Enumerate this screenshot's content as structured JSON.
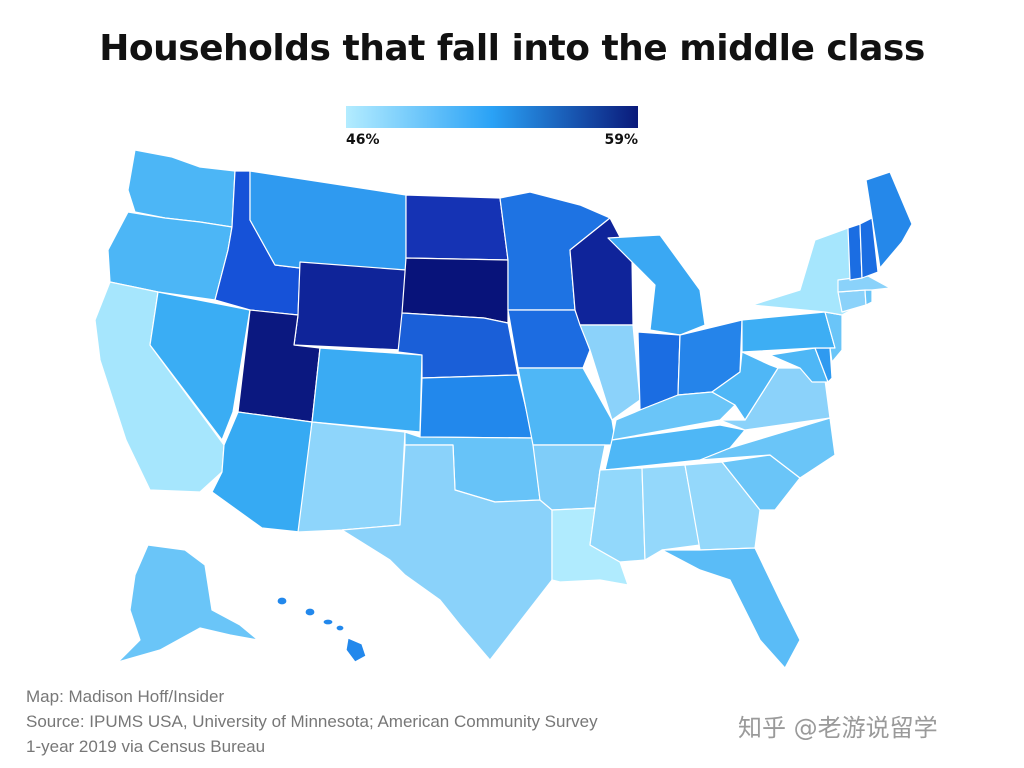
{
  "title": "Households that fall into the middle class",
  "legend": {
    "min_label": "46%",
    "max_label": "59%",
    "min_value": 46,
    "max_value": 59,
    "color_low": "#b3ecff",
    "color_mid": "#2aa2f6",
    "color_high": "#0a1a7a"
  },
  "credit": {
    "line1": "Map: Madison Hoff/Insider",
    "line2": "Source: IPUMS USA, University of Minnesota; American Community Survey",
    "line3": "1-year 2019 via Census Bureau"
  },
  "watermark": "知乎 @老游说留学",
  "states": {
    "WA": {
      "value": 51.5,
      "color": "#4cb6f6"
    },
    "OR": {
      "value": 51.5,
      "color": "#4cb6f6"
    },
    "CA": {
      "value": 47,
      "color": "#a6e6fd"
    },
    "NV": {
      "value": 52,
      "color": "#3aadf4"
    },
    "ID": {
      "value": 56,
      "color": "#1652d8"
    },
    "MT": {
      "value": 53,
      "color": "#2f9af0"
    },
    "WY": {
      "value": 58,
      "color": "#0f2499"
    },
    "UT": {
      "value": 59,
      "color": "#0b1880"
    },
    "AZ": {
      "value": 52,
      "color": "#36aaf3"
    },
    "CO": {
      "value": 52,
      "color": "#3aabf3"
    },
    "NM": {
      "value": 48,
      "color": "#8ed5fb"
    },
    "ND": {
      "value": 57,
      "color": "#1533b4"
    },
    "SD": {
      "value": 59,
      "color": "#08137a"
    },
    "NE": {
      "value": 56,
      "color": "#1a5fd8"
    },
    "KS": {
      "value": 54,
      "color": "#2288ec"
    },
    "OK": {
      "value": 50,
      "color": "#67c3f8"
    },
    "TX": {
      "value": 48.5,
      "color": "#8ad2fa"
    },
    "MN": {
      "value": 55,
      "color": "#1e73e3"
    },
    "IA": {
      "value": 55,
      "color": "#1c6ce1"
    },
    "MO": {
      "value": 51.5,
      "color": "#4fb7f6"
    },
    "AR": {
      "value": 49.5,
      "color": "#7fcdf9"
    },
    "LA": {
      "value": 46,
      "color": "#b0ebfe"
    },
    "WI": {
      "value": 58,
      "color": "#0f249a"
    },
    "IL": {
      "value": 49,
      "color": "#8bd2fa"
    },
    "MI": {
      "value": 52.5,
      "color": "#3aa8f3"
    },
    "IN": {
      "value": 55,
      "color": "#1b6de2"
    },
    "OH": {
      "value": 54,
      "color": "#2584ea"
    },
    "KY": {
      "value": 50,
      "color": "#6ac5f8"
    },
    "TN": {
      "value": 51,
      "color": "#4eb7f6"
    },
    "MS": {
      "value": 48,
      "color": "#92d8fb"
    },
    "AL": {
      "value": 48,
      "color": "#94d8fb"
    },
    "GA": {
      "value": 48,
      "color": "#94d8fb"
    },
    "FL": {
      "value": 50.5,
      "color": "#5abcf7"
    },
    "SC": {
      "value": 50,
      "color": "#6ac5f8"
    },
    "NC": {
      "value": 50,
      "color": "#6ac5f8"
    },
    "VA": {
      "value": 49,
      "color": "#8bd2fa"
    },
    "WV": {
      "value": 51.5,
      "color": "#4fb7f6"
    },
    "PA": {
      "value": 52,
      "color": "#3daef4"
    },
    "NY": {
      "value": 47,
      "color": "#a6e6fd"
    },
    "VT": {
      "value": 55,
      "color": "#1b6de2"
    },
    "NH": {
      "value": 55,
      "color": "#1b6de2"
    },
    "ME": {
      "value": 54,
      "color": "#2588ea"
    },
    "MA": {
      "value": 48.5,
      "color": "#8ad2fa"
    },
    "CT": {
      "value": 49,
      "color": "#8bd2fa"
    },
    "RI": {
      "value": 50,
      "color": "#6ac5f8"
    },
    "NJ": {
      "value": 50,
      "color": "#6ac5f8"
    },
    "DE": {
      "value": 53,
      "color": "#2f9af0"
    },
    "MD": {
      "value": 51,
      "color": "#4eb7f6"
    },
    "AK": {
      "value": 50,
      "color": "#6ac5f8"
    },
    "HI": {
      "value": 54,
      "color": "#2288ec"
    }
  }
}
